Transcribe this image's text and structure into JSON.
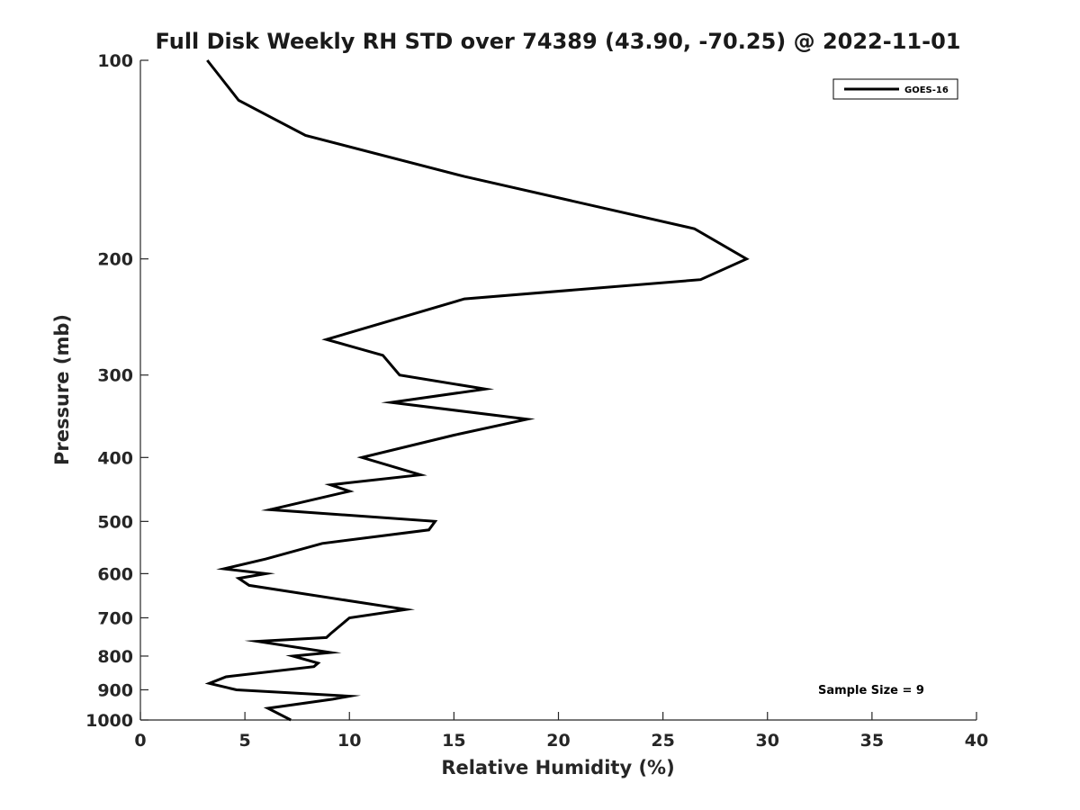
{
  "chart_data": {
    "type": "line",
    "title": "Full Disk Weekly RH STD over 74389 (43.90, -70.25) @ 2022-11-01",
    "xlabel": "Relative Humidity (%)",
    "ylabel": "Pressure (mb)",
    "xlim": [
      0,
      40
    ],
    "ylim": [
      100,
      1000
    ],
    "yscale": "log",
    "y_reversed": true,
    "grid": false,
    "legend_position": "top-right",
    "x_ticks": [
      "0",
      "5",
      "10",
      "15",
      "20",
      "25",
      "30",
      "35",
      "40"
    ],
    "y_ticks": [
      "100",
      "200",
      "300",
      "400",
      "500",
      "600",
      "700",
      "800",
      "900",
      "1000"
    ],
    "annotation": "Sample Size = 9",
    "series": [
      {
        "name": "GOES-16",
        "color": "#000000",
        "x": [
          3.2,
          4.7,
          7.9,
          15.5,
          26.5,
          29.0,
          26.8,
          15.5,
          8.9,
          11.6,
          12.4,
          16.5,
          12.0,
          18.5,
          15.0,
          10.6,
          13.4,
          9.1,
          10.0,
          6.2,
          14.1,
          13.8,
          8.7,
          6.0,
          4.0,
          6.0,
          4.7,
          5.2,
          12.7,
          10.0,
          9.1,
          8.9,
          5.6,
          9.1,
          7.3,
          8.5,
          8.3,
          4.1,
          3.3,
          4.6,
          10.0,
          9.2,
          6.1,
          7.2
        ],
        "y": [
          100,
          115,
          130,
          150,
          180,
          200,
          215,
          230,
          265,
          280,
          300,
          315,
          330,
          350,
          370,
          400,
          425,
          440,
          450,
          480,
          500,
          515,
          540,
          570,
          590,
          600,
          610,
          625,
          680,
          700,
          740,
          750,
          760,
          790,
          800,
          820,
          830,
          860,
          880,
          900,
          920,
          930,
          960,
          1000
        ]
      }
    ]
  }
}
